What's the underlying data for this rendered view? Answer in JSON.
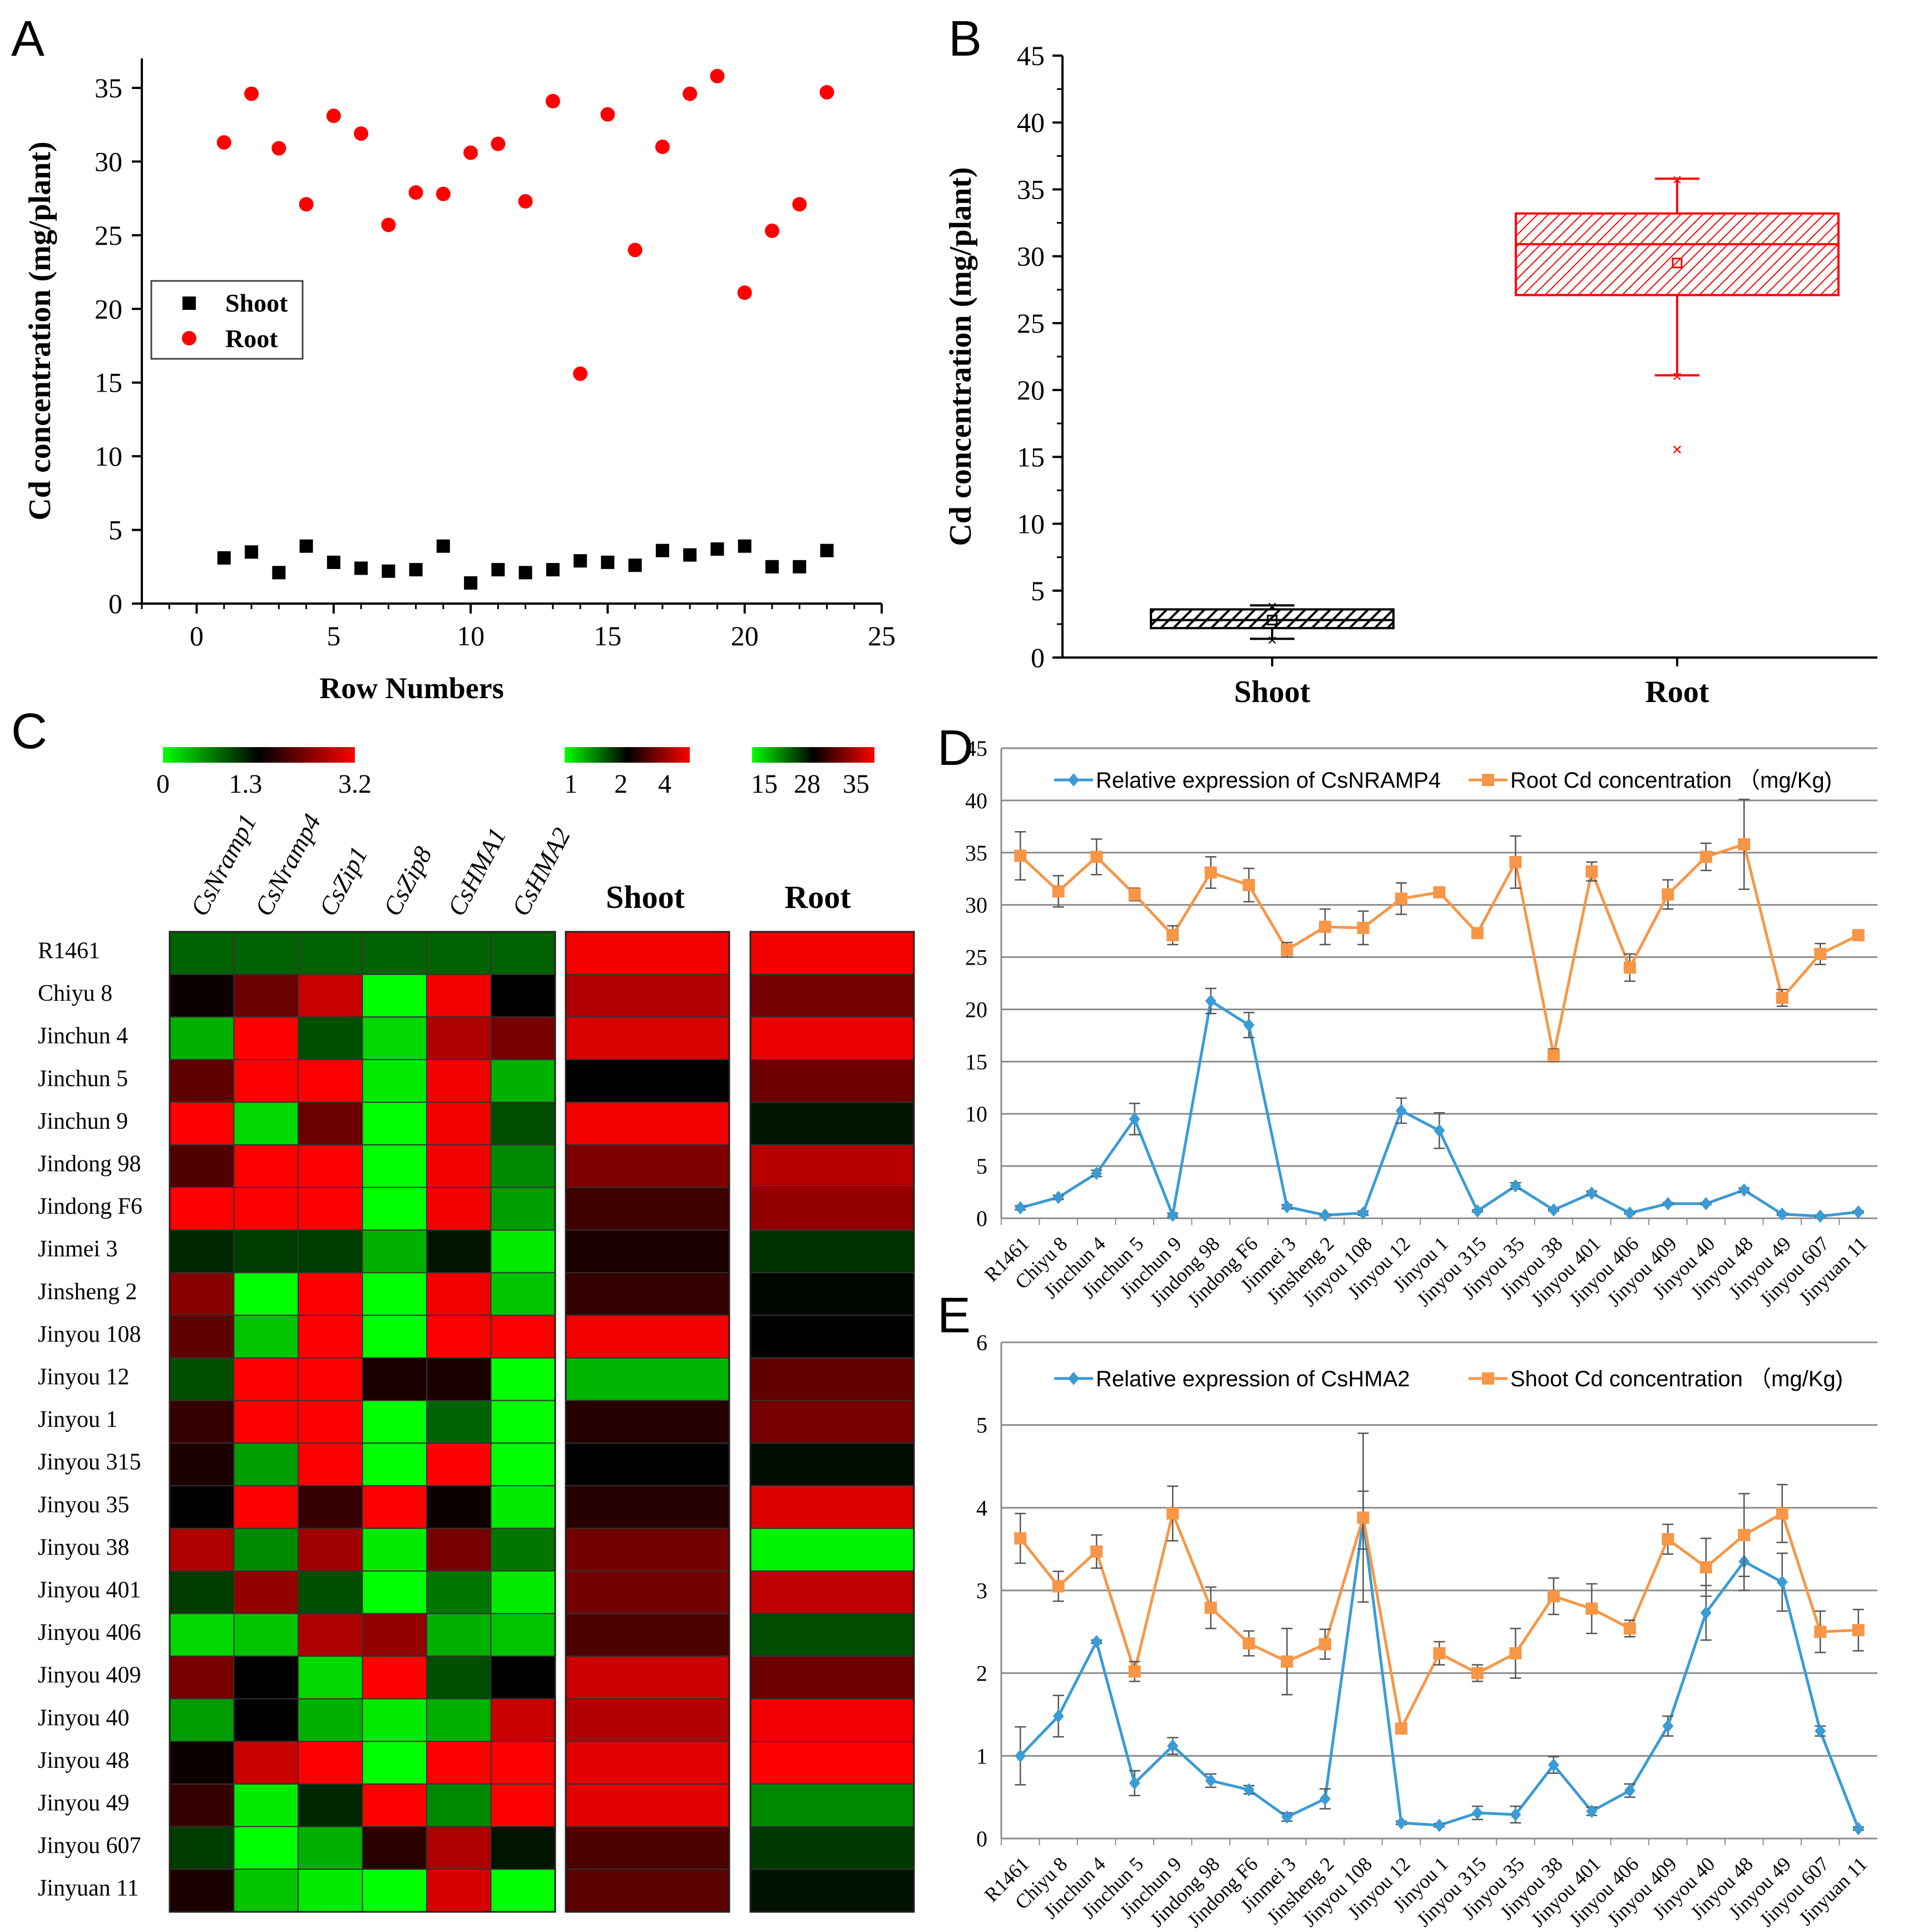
{
  "chart_data": [
    {
      "panel": "A",
      "type": "scatter",
      "xlabel": "Row Numbers",
      "ylabel": "Cd concentration (mg/plant)",
      "xlim": [
        -2,
        25
      ],
      "ylim": [
        0,
        37
      ],
      "xticks": [
        "0",
        "5",
        "10",
        "15",
        "20",
        "25"
      ],
      "yticks": [
        "0",
        "5",
        "10",
        "15",
        "20",
        "25",
        "30",
        "35"
      ],
      "legend_position": "left-middle",
      "series": [
        {
          "name": "Shoot",
          "color": "#000000",
          "marker": "square",
          "x": [
            1,
            2,
            3,
            4,
            5,
            6,
            7,
            8,
            9,
            10,
            11,
            12,
            13,
            14,
            15,
            16,
            17,
            18,
            19,
            20,
            21,
            22,
            23
          ],
          "y": [
            3.1,
            3.5,
            2.1,
            3.9,
            2.8,
            2.4,
            2.2,
            2.3,
            3.9,
            1.4,
            2.3,
            2.1,
            2.3,
            2.9,
            2.8,
            2.6,
            3.6,
            3.3,
            3.7,
            3.9,
            2.5,
            2.5,
            3.6
          ]
        },
        {
          "name": "Root",
          "color": "#ff0000",
          "marker": "circle",
          "x": [
            1,
            2,
            3,
            4,
            5,
            6,
            7,
            8,
            9,
            10,
            11,
            12,
            13,
            14,
            15,
            16,
            17,
            18,
            19,
            20,
            21,
            22,
            23
          ],
          "y": [
            31.3,
            34.6,
            30.9,
            27.1,
            33.1,
            31.9,
            25.7,
            27.9,
            27.8,
            30.6,
            31.2,
            27.3,
            34.1,
            15.6,
            33.2,
            24.0,
            31.0,
            34.6,
            35.8,
            21.1,
            25.3,
            27.1,
            34.7
          ]
        }
      ]
    },
    {
      "panel": "B",
      "type": "box",
      "ylabel": "Cd concentration (mg/plant)",
      "ylim": [
        0,
        45
      ],
      "yticks": [
        "0",
        "5",
        "10",
        "15",
        "20",
        "25",
        "30",
        "35",
        "40",
        "45"
      ],
      "categories": [
        "Shoot",
        "Root"
      ],
      "boxes": [
        {
          "name": "Shoot",
          "color": "#000000",
          "min": 1.4,
          "q1": 2.2,
          "median": 2.8,
          "mean": 2.8,
          "q3": 3.6,
          "max": 3.9,
          "outliers": []
        },
        {
          "name": "Root",
          "color": "#ff0000",
          "min": 21.1,
          "q1": 27.1,
          "median": 30.9,
          "mean": 29.5,
          "q3": 33.2,
          "max": 35.8,
          "outliers": [
            15.6
          ]
        }
      ]
    },
    {
      "panel": "C",
      "type": "heatmap",
      "rows": [
        "R1461",
        "Chiyu 8",
        "Jinchun 4",
        "Jinchun 5",
        "Jinchun 9",
        "Jindong 98",
        "Jindong F6",
        "Jinmei 3",
        "Jinsheng 2",
        "Jinyou 108",
        "Jinyou 12",
        "Jinyou 1",
        "Jinyou 315",
        "Jinyou 35",
        "Jinyou 38",
        "Jinyou 401",
        "Jinyou 406",
        "Jinyou 409",
        "Jinyou 40",
        "Jinyou 48",
        "Jinyou 49",
        "Jinyou 607",
        "Jinyuan 11"
      ],
      "gene_columns": [
        "CsNramp1",
        "CsNramp4",
        "CsZip1",
        "CsZip8",
        "CsHMA1",
        "CsHMA2"
      ],
      "gene_scale": {
        "labels": [
          "0",
          "1.3",
          "3.2"
        ],
        "min": 0,
        "mid": 1.3,
        "max": 3.2
      },
      "gene_values": [
        [
          0.8,
          0.8,
          0.8,
          0.8,
          0.8,
          0.8
        ],
        [
          1.4,
          2.1,
          2.8,
          0.0,
          3.1,
          1.3
        ],
        [
          0.4,
          3.2,
          0.9,
          0.2,
          2.6,
          2.2
        ],
        [
          2.0,
          3.2,
          3.2,
          0.1,
          3.1,
          0.4
        ],
        [
          3.2,
          0.2,
          2.1,
          0.0,
          3.1,
          0.9
        ],
        [
          1.9,
          3.2,
          3.2,
          0.0,
          3.1,
          0.6
        ],
        [
          3.2,
          3.2,
          3.2,
          0.0,
          3.1,
          0.5
        ],
        [
          1.1,
          1.0,
          1.0,
          0.4,
          1.2,
          0.1
        ],
        [
          2.3,
          0.0,
          3.2,
          0.0,
          3.1,
          0.3
        ],
        [
          2.0,
          0.3,
          3.2,
          0.0,
          3.2,
          3.2
        ],
        [
          0.9,
          3.2,
          3.2,
          1.5,
          1.5,
          0.0
        ],
        [
          1.7,
          3.2,
          3.2,
          0.0,
          0.8,
          0.0
        ],
        [
          1.5,
          0.5,
          3.2,
          0.0,
          3.2,
          0.0
        ],
        [
          1.3,
          3.2,
          1.7,
          3.2,
          1.4,
          0.1
        ],
        [
          2.6,
          0.6,
          2.5,
          0.1,
          2.2,
          0.7
        ],
        [
          1.0,
          2.4,
          0.9,
          0.0,
          0.7,
          0.1
        ],
        [
          0.2,
          0.3,
          2.6,
          2.4,
          0.4,
          0.3
        ],
        [
          2.2,
          1.3,
          0.2,
          3.2,
          0.9,
          1.3
        ],
        [
          0.5,
          1.3,
          0.4,
          0.1,
          0.4,
          2.8
        ],
        [
          1.4,
          2.8,
          3.2,
          0.0,
          3.2,
          3.2
        ],
        [
          1.7,
          0.1,
          1.1,
          3.2,
          0.6,
          3.2
        ],
        [
          1.0,
          0.0,
          0.4,
          1.6,
          2.6,
          1.2
        ],
        [
          1.5,
          0.3,
          0.1,
          0.0,
          2.9,
          0.0
        ]
      ],
      "shoot_scale": {
        "labels": [
          "1",
          "2",
          "4"
        ],
        "min": 1,
        "mid": 2,
        "max": 4
      },
      "shoot_values": [
        3.9,
        3.4,
        3.7,
        2.0,
        3.9,
        3.0,
        2.5,
        2.2,
        2.4,
        3.9,
        1.3,
        2.3,
        2.0,
        2.3,
        2.9,
        2.9,
        2.6,
        3.6,
        3.4,
        3.8,
        3.8,
        2.6,
        2.7
      ],
      "root_scale": {
        "labels": [
          "15",
          "28",
          "35"
        ],
        "min": 15,
        "mid": 28,
        "max": 35
      },
      "root_values": [
        34.7,
        31.2,
        34.5,
        31.0,
        26.9,
        33.0,
        32.0,
        25.5,
        27.7,
        27.9,
        30.7,
        31.3,
        27.3,
        34.0,
        15.6,
        33.2,
        24.1,
        31.0,
        34.6,
        35.8,
        21.0,
        25.1,
        27.1
      ],
      "column_headers": [
        "Shoot",
        "Root"
      ]
    },
    {
      "panel": "D",
      "type": "line",
      "categories": [
        "R1461",
        "Chiyu 8",
        "Jinchun 4",
        "Jinchun 5",
        "Jinchun 9",
        "Jindong 98",
        "Jindong F6",
        "Jinmei 3",
        "Jinsheng 2",
        "Jinyou 108",
        "Jinyou 12",
        "Jinyou 1",
        "Jinyou 315",
        "Jinyou 35",
        "Jinyou 38",
        "Jinyou 401",
        "Jinyou 406",
        "Jinyou 409",
        "Jinyou 40",
        "Jinyou 48",
        "Jinyou 49",
        "Jinyou 607",
        "Jinyuan 11"
      ],
      "ylim": [
        0,
        45
      ],
      "yticks": [
        "0",
        "5",
        "10",
        "15",
        "20",
        "25",
        "30",
        "35",
        "40",
        "45"
      ],
      "legend_position": "top",
      "series": [
        {
          "name": "Relative expression of CsNRAMP4",
          "color": "#3a9bd5",
          "marker": "diamond",
          "values": [
            1.0,
            2.0,
            4.3,
            9.5,
            0.3,
            20.8,
            18.5,
            1.1,
            0.3,
            0.5,
            10.3,
            8.4,
            0.7,
            3.1,
            0.8,
            2.4,
            0.5,
            1.4,
            1.4,
            2.7,
            0.4,
            0.2,
            0.6
          ],
          "errors": [
            0.2,
            0.2,
            0.3,
            1.5,
            0.2,
            1.2,
            1.2,
            0.2,
            0.1,
            0.2,
            1.2,
            1.7,
            0.1,
            0.3,
            0.1,
            0.2,
            0.1,
            0.1,
            0.1,
            0.2,
            0.1,
            0.1,
            0.1
          ]
        },
        {
          "name": "Root Cd concentration （mg/Kg)",
          "color": "#f79646",
          "marker": "square",
          "values": [
            34.7,
            31.3,
            34.6,
            31.0,
            27.1,
            33.1,
            31.9,
            25.7,
            27.9,
            27.8,
            30.6,
            31.2,
            27.3,
            34.1,
            15.6,
            33.2,
            24.0,
            31.0,
            34.6,
            35.8,
            21.1,
            25.3,
            27.1
          ],
          "errors": [
            2.3,
            1.5,
            1.7,
            0.6,
            0.9,
            1.5,
            1.6,
            0.7,
            1.7,
            1.6,
            1.5,
            0.5,
            0.4,
            2.5,
            0.6,
            0.9,
            1.3,
            1.4,
            1.3,
            4.3,
            0.8,
            1.0,
            0.4
          ]
        }
      ]
    },
    {
      "panel": "E",
      "type": "line",
      "categories": [
        "R1461",
        "Chiyu 8",
        "Jinchun 4",
        "Jinchun 5",
        "Jinchun 9",
        "Jindong 98",
        "Jindong F6",
        "Jinmei 3",
        "Jinsheng 2",
        "Jinyou 108",
        "Jinyou 12",
        "Jinyou 1",
        "Jinyou 315",
        "Jinyou 35",
        "Jinyou 38",
        "Jinyou 401",
        "Jinyou 406",
        "Jinyou 409",
        "Jinyou 40",
        "Jinyou 48",
        "Jinyou 49",
        "Jinyou 607",
        "Jinyuan 11"
      ],
      "ylim": [
        0,
        6
      ],
      "yticks": [
        "0",
        "1",
        "2",
        "3",
        "4",
        "5",
        "6"
      ],
      "legend_position": "top",
      "series": [
        {
          "name": "Relative expression of CsHMA2",
          "color": "#3a9bd5",
          "marker": "diamond",
          "values": [
            1.0,
            1.48,
            2.38,
            0.67,
            1.12,
            0.7,
            0.59,
            0.26,
            0.48,
            3.85,
            0.19,
            0.16,
            0.31,
            0.29,
            0.89,
            0.33,
            0.58,
            1.36,
            2.73,
            3.35,
            3.1,
            1.3,
            0.12
          ],
          "errors": [
            0.35,
            0.25,
            0.02,
            0.15,
            0.1,
            0.08,
            0.05,
            0.05,
            0.12,
            0.35,
            0.02,
            0.02,
            0.08,
            0.1,
            0.1,
            0.05,
            0.08,
            0.12,
            0.33,
            0.35,
            0.35,
            0.06,
            0.02
          ]
        },
        {
          "name": "Shoot Cd concentration （mg/Kg)",
          "color": "#f79646",
          "marker": "square",
          "values": [
            3.63,
            3.05,
            3.47,
            2.02,
            3.93,
            2.79,
            2.36,
            2.14,
            2.35,
            3.88,
            1.33,
            2.24,
            2.0,
            2.24,
            2.93,
            2.78,
            2.54,
            3.62,
            3.28,
            3.67,
            3.93,
            2.5,
            2.52
          ],
          "errors": [
            0.3,
            0.18,
            0.2,
            0.12,
            0.33,
            0.25,
            0.15,
            0.4,
            0.18,
            1.02,
            0.06,
            0.14,
            0.1,
            0.3,
            0.22,
            0.3,
            0.1,
            0.18,
            0.35,
            0.5,
            0.35,
            0.25,
            0.25
          ]
        }
      ]
    }
  ],
  "panel_labels": {
    "A": "A",
    "B": "B",
    "C": "C",
    "D": "D",
    "E": "E"
  }
}
